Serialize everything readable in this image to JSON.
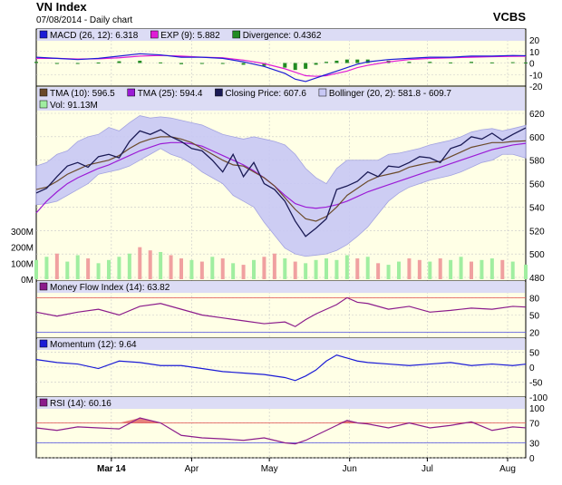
{
  "header": {
    "title": "VN Index",
    "subtitle": "07/08/2014 - Daily chart",
    "brand": "VCBS"
  },
  "colors": {
    "panel_bg": "#ffffe6",
    "legend_bg": "#dcdcf5",
    "grid": "#c8c8c8",
    "macd": "#1b1bd6",
    "exp": "#e01bd6",
    "divergence": "#228b22",
    "tma10": "#6b4a2a",
    "tma25": "#9b1bd6",
    "close": "#1a1a55",
    "bollinger_fill": "#c8c8f5",
    "vol_up": "#a0eea0",
    "vol_down": "#f0a0a0",
    "mfi": "#8b1b8b",
    "momentum": "#1b1bd6",
    "rsi": "#8b1b8b",
    "ref_red": "#e05050",
    "ref_blue": "#5050e0",
    "rsi_fill": "#e06060"
  },
  "x_axis": {
    "labels": [
      {
        "text": "Mar 14",
        "bold": true,
        "day": 29
      },
      {
        "text": "Apr",
        "bold": false,
        "day": 60
      },
      {
        "text": "May",
        "bold": false,
        "day": 90
      },
      {
        "text": "Jun",
        "bold": false,
        "day": 121
      },
      {
        "text": "Jul",
        "bold": false,
        "day": 151
      },
      {
        "text": "Aug",
        "bold": false,
        "day": 182
      }
    ],
    "day_min": 0,
    "day_max": 189
  },
  "panels": {
    "macd": {
      "legend": [
        {
          "swatch": "#1b1bd6",
          "text": "MACD (26, 12): 6.318"
        },
        {
          "swatch": "#e01bd6",
          "text": "EXP (9): 5.882"
        },
        {
          "swatch": "#228b22",
          "text": "Divergence: 0.4362"
        }
      ],
      "ylim": [
        -20,
        20
      ],
      "ticks": [
        "20",
        "10",
        "0",
        "-10",
        "-20"
      ],
      "tick_values": [
        20,
        10,
        0,
        -10,
        -20
      ]
    },
    "price": {
      "legend_row1": [
        {
          "swatch": "#6b4a2a",
          "text": "TMA (10): 596.5"
        },
        {
          "swatch": "#9b1bd6",
          "text": "TMA (25): 594.4"
        },
        {
          "swatch": "#1a1a55",
          "text": "Closing Price: 607.6"
        },
        {
          "swatch": "#c8c8f5",
          "text": "Bollinger (20, 2): 581.8 - 609.7"
        }
      ],
      "legend_row2": [
        {
          "swatch": "#a0eea0",
          "text": "Vol: 91.13M"
        }
      ],
      "ylim": [
        480,
        620
      ],
      "ticks": [
        "620",
        "600",
        "580",
        "560",
        "540",
        "520",
        "500",
        "480"
      ],
      "tick_values": [
        620,
        600,
        580,
        560,
        540,
        520,
        500,
        480
      ],
      "vol_ticks": [
        "300M",
        "200M",
        "100M",
        "0M"
      ],
      "vol_tick_values": [
        300,
        200,
        100,
        0
      ]
    },
    "mfi": {
      "legend": [
        {
          "swatch": "#8b1b8b",
          "text": "Money Flow Index (14): 63.82"
        }
      ],
      "ylim": [
        10,
        90
      ],
      "ticks": [
        "80",
        "50",
        "20"
      ],
      "tick_values": [
        80,
        50,
        20
      ]
    },
    "momentum": {
      "legend": [
        {
          "swatch": "#1b1bd6",
          "text": "Momentum (12): 9.64"
        }
      ],
      "ylim": [
        -100,
        60
      ],
      "ticks": [
        "50",
        "0",
        "-50",
        "-100"
      ],
      "tick_values": [
        50,
        0,
        -50,
        -100
      ]
    },
    "rsi": {
      "legend": [
        {
          "swatch": "#8b1b8b",
          "text": "RSI (14): 60.16"
        }
      ],
      "ylim": [
        0,
        100
      ],
      "ticks": [
        "100",
        "70",
        "30",
        "0"
      ],
      "tick_values": [
        100,
        70,
        30,
        0
      ]
    }
  },
  "chart_data": [
    {
      "type": "line",
      "name": "macd-panel",
      "x": [
        0,
        8,
        16,
        24,
        32,
        40,
        48,
        56,
        64,
        72,
        80,
        88,
        96,
        100,
        104,
        108,
        112,
        116,
        120,
        124,
        128,
        136,
        144,
        152,
        160,
        168,
        176,
        184,
        189
      ],
      "series": [
        {
          "name": "MACD",
          "values": [
            5,
            4,
            3,
            4,
            6,
            8,
            7,
            5,
            5,
            4,
            1,
            -3,
            -9,
            -14,
            -16,
            -13,
            -10,
            -7,
            -4,
            -1,
            1,
            3,
            4,
            5,
            5,
            6,
            6,
            6.5,
            6.318
          ]
        },
        {
          "name": "EXP",
          "values": [
            4,
            4,
            3.5,
            3.6,
            4.5,
            6,
            6.5,
            6,
            5,
            4.5,
            2.5,
            -0.5,
            -5,
            -8,
            -11,
            -11.5,
            -11,
            -9,
            -7,
            -4,
            -2,
            1,
            3,
            4,
            4.5,
            5,
            5.5,
            5.8,
            5.882
          ]
        },
        {
          "name": "Divergence",
          "values": [
            1,
            0,
            -0.5,
            0.4,
            1.5,
            2,
            0.5,
            -1,
            0,
            -0.5,
            -1.5,
            -2.5,
            -4,
            -6,
            -5,
            -1.5,
            1,
            2,
            3,
            3,
            3,
            2,
            1,
            1,
            0.5,
            1,
            0.5,
            0.7,
            0.4362
          ]
        }
      ]
    },
    {
      "type": "line",
      "name": "price-panel",
      "x": [
        0,
        4,
        8,
        12,
        16,
        20,
        24,
        28,
        32,
        36,
        40,
        44,
        48,
        52,
        56,
        60,
        64,
        68,
        72,
        76,
        80,
        84,
        88,
        92,
        96,
        100,
        104,
        108,
        112,
        116,
        120,
        124,
        128,
        132,
        136,
        140,
        144,
        148,
        152,
        156,
        160,
        164,
        168,
        172,
        176,
        180,
        184,
        189
      ],
      "series": [
        {
          "name": "Closing Price",
          "values": [
            552,
            556,
            566,
            575,
            578,
            574,
            583,
            585,
            582,
            596,
            605,
            602,
            606,
            600,
            596,
            590,
            588,
            580,
            570,
            585,
            566,
            578,
            560,
            555,
            545,
            528,
            515,
            522,
            530,
            555,
            558,
            562,
            570,
            566,
            575,
            574,
            578,
            583,
            582,
            578,
            590,
            593,
            600,
            598,
            603,
            597,
            602,
            607.6
          ]
        },
        {
          "name": "TMA (10)",
          "values": [
            555,
            557,
            562,
            568,
            572,
            576,
            578,
            580,
            584,
            590,
            595,
            598,
            600,
            600,
            598,
            595,
            590,
            585,
            580,
            576,
            575,
            570,
            565,
            558,
            548,
            538,
            530,
            528,
            532,
            540,
            550,
            556,
            562,
            566,
            568,
            570,
            574,
            576,
            578,
            579,
            583,
            587,
            591,
            593,
            595,
            595,
            596,
            596.5
          ]
        },
        {
          "name": "TMA (25)",
          "values": [
            535,
            545,
            553,
            560,
            565,
            569,
            573,
            576,
            580,
            584,
            588,
            591,
            594,
            595,
            595,
            594,
            592,
            588,
            584,
            580,
            576,
            571,
            565,
            558,
            550,
            543,
            540,
            539,
            540,
            542,
            545,
            549,
            553,
            556,
            559,
            562,
            565,
            568,
            571,
            574,
            577,
            580,
            583,
            586,
            589,
            591,
            593,
            594.4
          ]
        },
        {
          "name": "Bollinger upper",
          "values": [
            575,
            578,
            585,
            588,
            596,
            600,
            602,
            608,
            605,
            612,
            618,
            616,
            617,
            616,
            614,
            612,
            610,
            606,
            602,
            600,
            598,
            600,
            598,
            596,
            593,
            585,
            573,
            565,
            560,
            573,
            580,
            580,
            580,
            580,
            585,
            586,
            588,
            590,
            593,
            595,
            597,
            600,
            604,
            606,
            607,
            605,
            607,
            609.7
          ]
        },
        {
          "name": "Bollinger lower",
          "values": [
            542,
            543,
            545,
            550,
            555,
            560,
            568,
            570,
            572,
            575,
            580,
            585,
            590,
            585,
            582,
            577,
            570,
            565,
            560,
            550,
            545,
            540,
            527,
            516,
            505,
            500,
            498,
            499,
            500,
            503,
            508,
            515,
            523,
            534,
            545,
            552,
            557,
            560,
            563,
            565,
            567,
            570,
            574,
            578,
            580,
            585,
            585,
            581.8
          ]
        }
      ]
    },
    {
      "type": "bar",
      "name": "volume",
      "x": [
        0,
        4,
        8,
        12,
        16,
        20,
        24,
        28,
        32,
        36,
        40,
        44,
        48,
        52,
        56,
        60,
        64,
        68,
        72,
        76,
        80,
        84,
        88,
        92,
        96,
        100,
        104,
        108,
        112,
        116,
        120,
        124,
        128,
        132,
        136,
        140,
        144,
        148,
        152,
        156,
        160,
        164,
        168,
        172,
        176,
        180,
        184,
        189
      ],
      "values": [
        120,
        140,
        160,
        110,
        150,
        130,
        100,
        120,
        140,
        160,
        200,
        180,
        170,
        150,
        130,
        120,
        110,
        140,
        130,
        100,
        90,
        120,
        140,
        160,
        130,
        110,
        100,
        120,
        130,
        120,
        150,
        130,
        140,
        100,
        90,
        110,
        130,
        120,
        110,
        130,
        120,
        140,
        110,
        120,
        130,
        120,
        110,
        91.13
      ],
      "up": [
        true,
        true,
        false,
        true,
        true,
        false,
        true,
        true,
        true,
        true,
        false,
        false,
        true,
        false,
        false,
        true,
        false,
        true,
        false,
        true,
        false,
        true,
        false,
        false,
        true,
        false,
        true,
        true,
        true,
        true,
        true,
        false,
        true,
        false,
        true,
        true,
        false,
        false,
        true,
        false,
        true,
        true,
        false,
        true,
        true,
        false,
        true,
        true
      ]
    },
    {
      "type": "line",
      "name": "mfi-panel",
      "x": [
        0,
        8,
        16,
        24,
        32,
        40,
        48,
        56,
        64,
        72,
        80,
        88,
        96,
        100,
        104,
        108,
        112,
        116,
        120,
        124,
        128,
        136,
        144,
        152,
        160,
        168,
        176,
        184,
        189
      ],
      "series": [
        {
          "name": "Money Flow Index (14)",
          "values": [
            55,
            48,
            55,
            60,
            50,
            65,
            70,
            60,
            50,
            45,
            40,
            35,
            38,
            30,
            42,
            52,
            60,
            68,
            80,
            72,
            70,
            60,
            65,
            55,
            58,
            62,
            60,
            65,
            63.82
          ]
        }
      ]
    },
    {
      "type": "line",
      "name": "momentum-panel",
      "x": [
        0,
        8,
        16,
        24,
        32,
        40,
        48,
        56,
        64,
        72,
        80,
        88,
        96,
        100,
        104,
        108,
        112,
        116,
        120,
        124,
        128,
        136,
        144,
        152,
        160,
        168,
        176,
        184,
        189
      ],
      "series": [
        {
          "name": "Momentum (12)",
          "values": [
            25,
            15,
            10,
            -5,
            20,
            15,
            5,
            5,
            -5,
            -15,
            -20,
            -25,
            -35,
            -45,
            -30,
            -10,
            20,
            40,
            30,
            20,
            15,
            10,
            5,
            10,
            15,
            5,
            10,
            5,
            9.64
          ]
        }
      ]
    },
    {
      "type": "area",
      "name": "rsi-panel",
      "x": [
        0,
        8,
        16,
        24,
        32,
        40,
        48,
        56,
        64,
        72,
        80,
        88,
        96,
        100,
        104,
        108,
        112,
        116,
        120,
        124,
        128,
        136,
        144,
        152,
        160,
        168,
        176,
        184,
        189
      ],
      "series": [
        {
          "name": "RSI (14)",
          "values": [
            60,
            55,
            62,
            60,
            58,
            80,
            70,
            45,
            40,
            38,
            35,
            40,
            30,
            28,
            35,
            45,
            55,
            65,
            75,
            70,
            68,
            60,
            70,
            60,
            65,
            72,
            55,
            62,
            60.16
          ]
        }
      ]
    }
  ]
}
